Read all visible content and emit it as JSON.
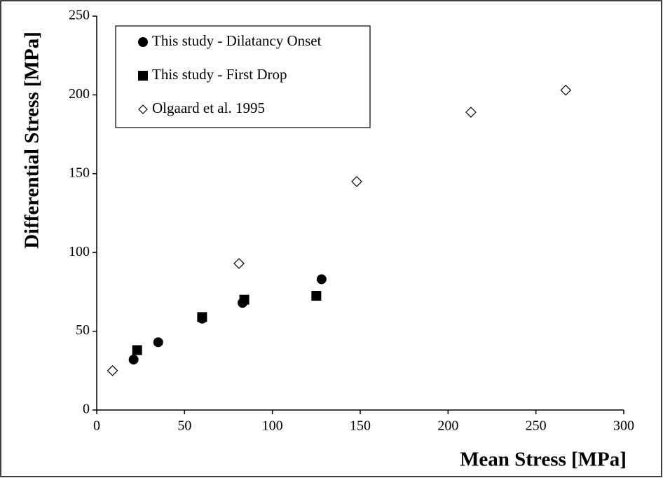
{
  "chart_data": {
    "type": "scatter",
    "x_label": "Mean Stress [MPa]",
    "y_label": "Differential Stress [MPa]",
    "xlim": [
      0,
      300
    ],
    "ylim": [
      0,
      250
    ],
    "xticks": [
      0,
      50,
      100,
      150,
      200,
      250,
      300
    ],
    "yticks": [
      0,
      50,
      100,
      150,
      200,
      250
    ],
    "grid": false,
    "legend": "upper left",
    "series": [
      {
        "name": "This study - Dilatancy Onset",
        "color": "#000000",
        "marker": "circle",
        "x": [
          21,
          35,
          60,
          83,
          128
        ],
        "values": [
          32,
          43,
          58,
          68,
          83
        ]
      },
      {
        "name": "This study - First Drop",
        "color": "#000000",
        "marker": "square",
        "x": [
          23,
          60,
          84,
          125
        ],
        "values": [
          38,
          59,
          70,
          72.5
        ]
      },
      {
        "name": "Olgaard et al. 1995",
        "color": "#000000",
        "marker": "diamond",
        "x": [
          9,
          81,
          148,
          213,
          267
        ],
        "values": [
          25,
          93,
          145,
          189,
          203
        ]
      }
    ]
  }
}
